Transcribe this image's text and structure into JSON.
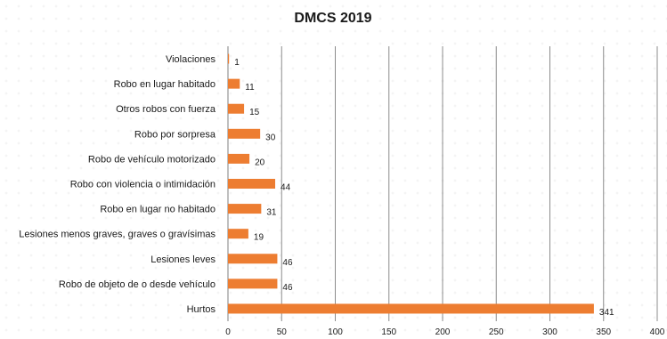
{
  "chart_data": {
    "type": "bar",
    "orientation": "horizontal",
    "title": "DMCS 2019",
    "categories": [
      "Violaciones",
      "Robo en lugar habitado",
      "Otros robos con fuerza",
      "Robo por sorpresa",
      "Robo de vehículo motorizado",
      "Robo con violencia o intimidación",
      "Robo en lugar no habitado",
      "Lesiones menos graves, graves o gravísimas",
      "Lesiones leves",
      "Robo de objeto de o desde vehículo",
      "Hurtos"
    ],
    "values": [
      1,
      11,
      15,
      30,
      20,
      44,
      31,
      19,
      46,
      46,
      341
    ],
    "xlim": [
      0,
      400
    ],
    "xticks": [
      "0",
      "50",
      "100",
      "150",
      "200",
      "250",
      "300",
      "350",
      "400"
    ],
    "grid": "vertical",
    "legend": "none",
    "bar_color": "#ED7D31"
  }
}
